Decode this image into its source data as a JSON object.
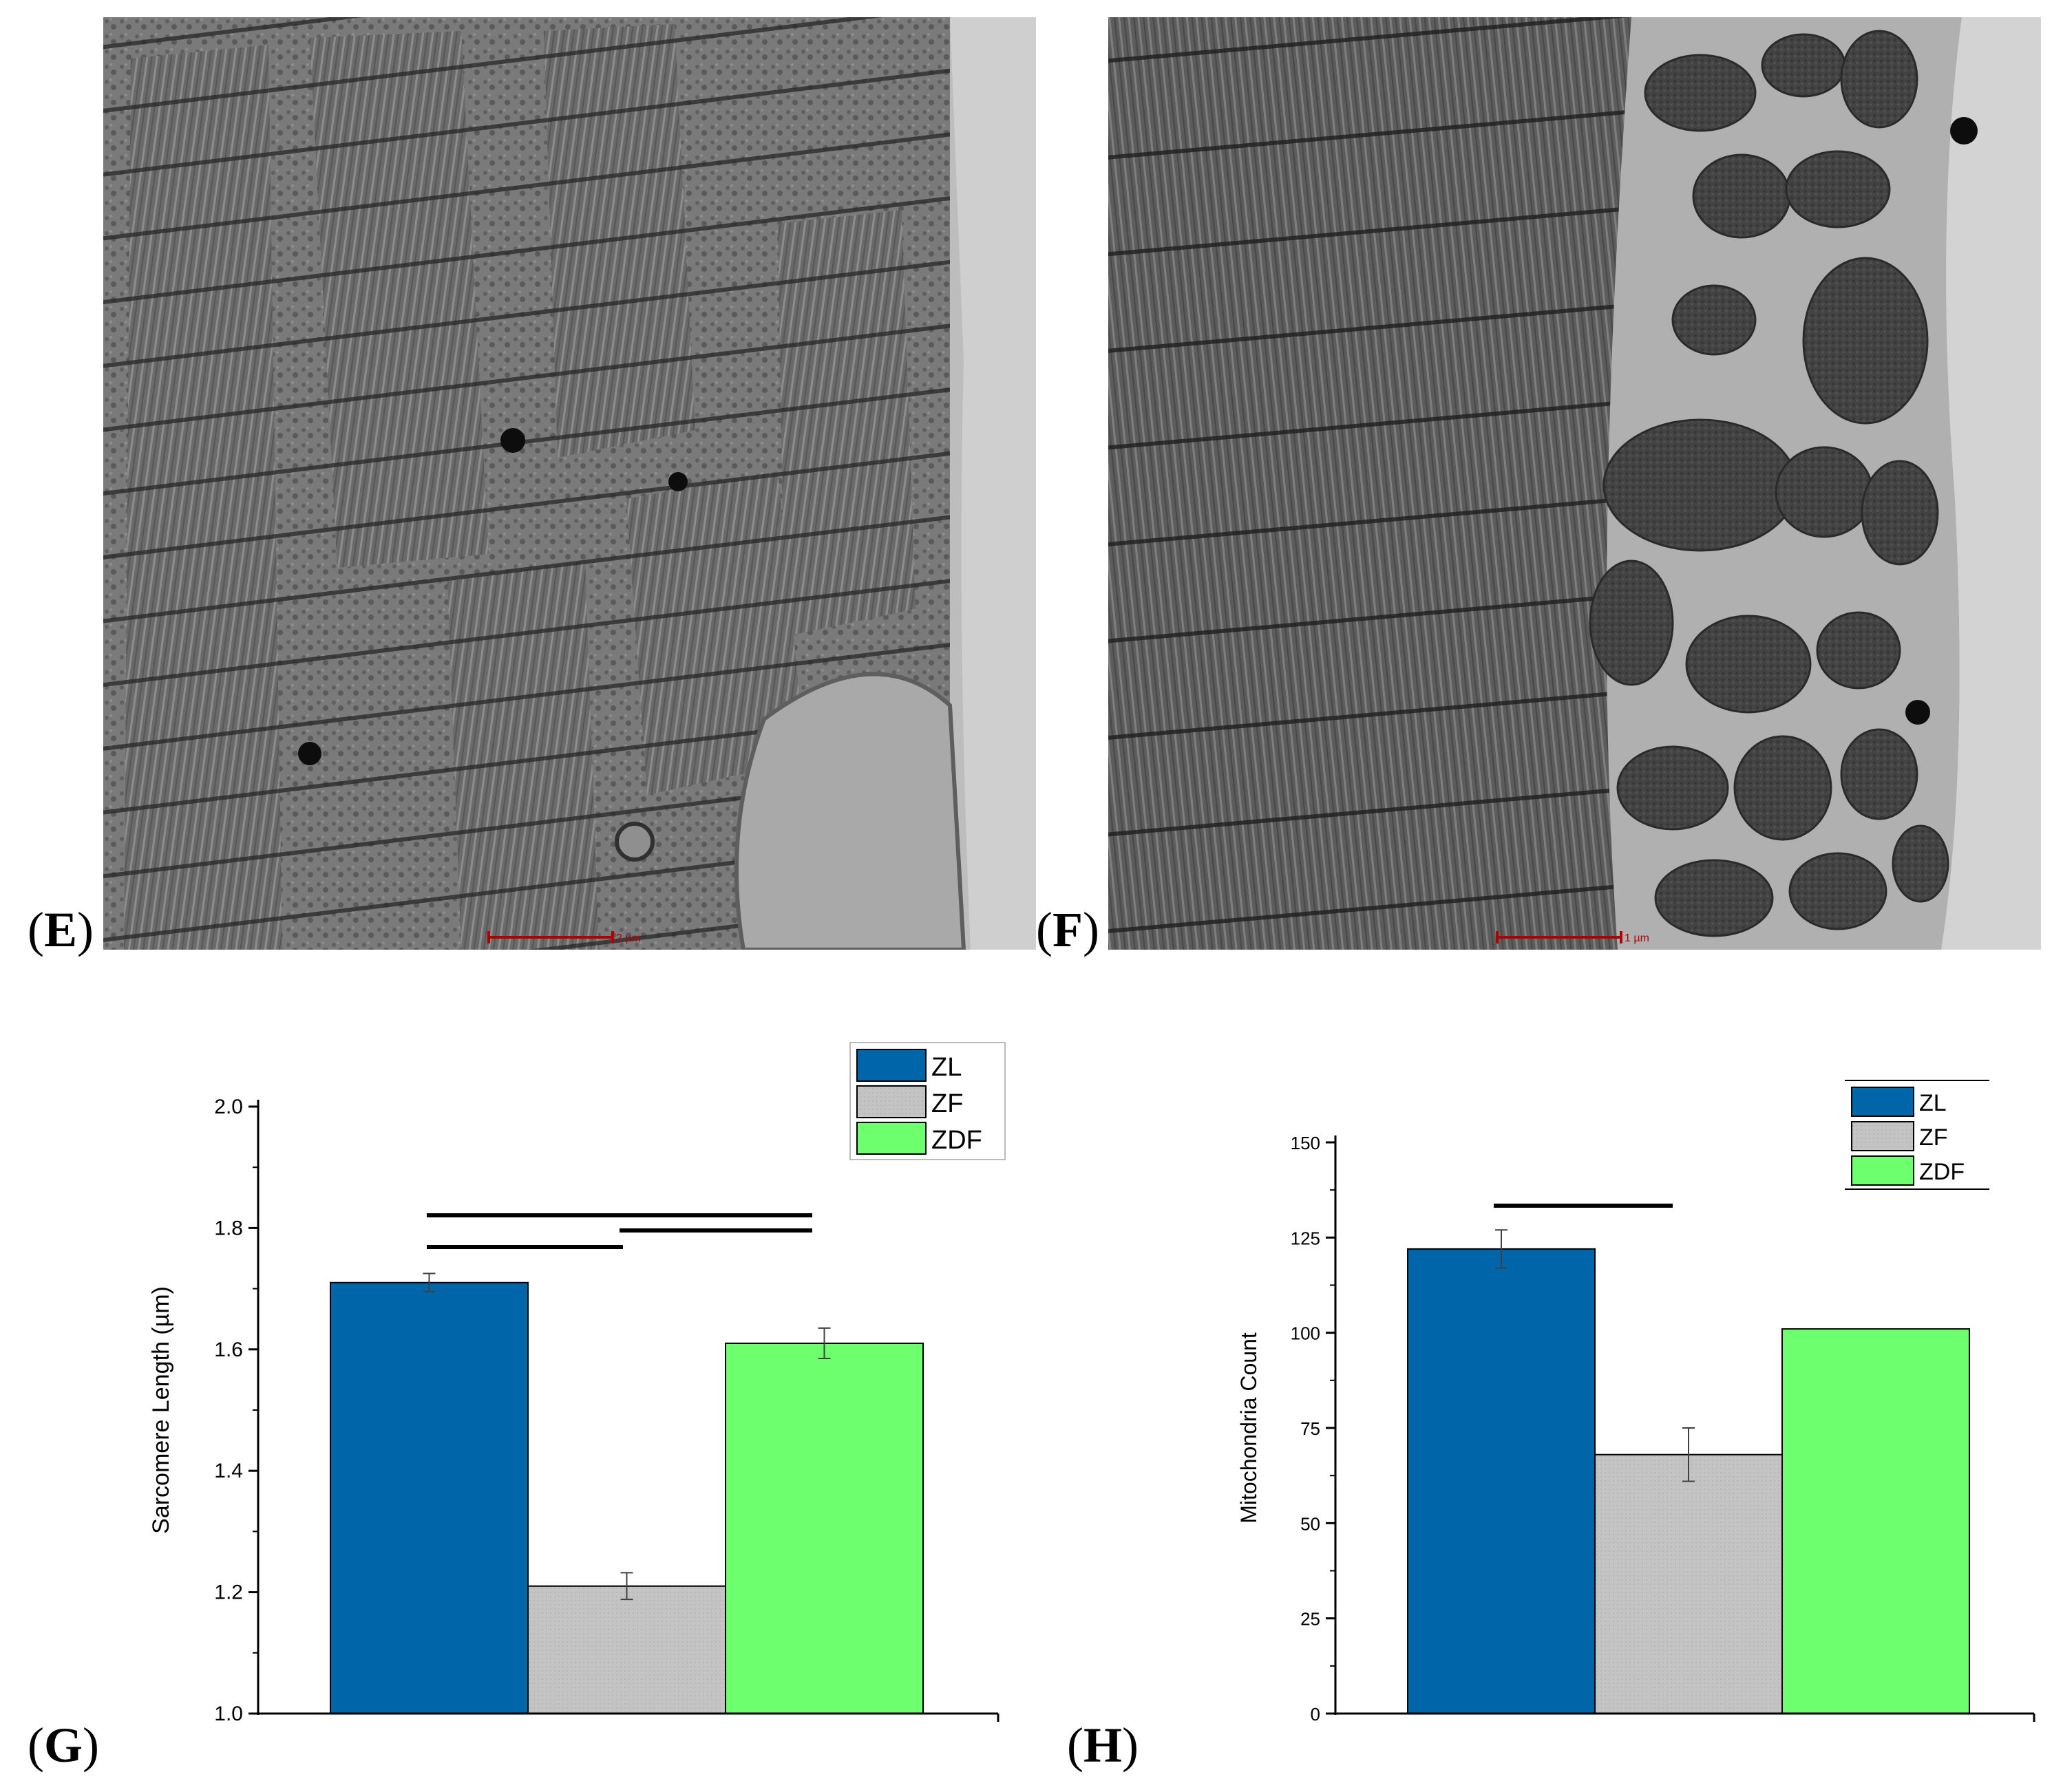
{
  "panels": {
    "E": {
      "letter": "E",
      "open": "(",
      "close": ")"
    },
    "F": {
      "letter": "F",
      "open": "(",
      "close": ")"
    },
    "G": {
      "letter": "G",
      "open": "(",
      "close": ")"
    },
    "H": {
      "letter": "H",
      "open": "(",
      "close": ")"
    }
  },
  "micrographs": {
    "E": {
      "scale_bar_label": "2 µm"
    },
    "F": {
      "scale_bar_label": "1 µm"
    }
  },
  "colors": {
    "ZL": "#0066aa",
    "ZF": "#c4c4c4",
    "ZDF": "#6dff6d",
    "axis": "#000000"
  },
  "chart_data": [
    {
      "type": "bar",
      "panel": "G",
      "categories": [
        "ZL",
        "ZF",
        "ZDF"
      ],
      "values": [
        1.71,
        1.21,
        1.61
      ],
      "errors": [
        0.015,
        0.022,
        0.025
      ],
      "ylabel": "Sarcomere Length (µm)",
      "xlabel": "",
      "ylim": [
        1.0,
        2.0
      ],
      "yticks": [
        "1.0",
        "1.2",
        "1.4",
        "1.6",
        "1.8",
        "2.0"
      ],
      "legend": [
        "ZL",
        "ZF",
        "ZDF"
      ],
      "legend_position": "top-right",
      "significance": [
        [
          0,
          2
        ],
        [
          0,
          1
        ],
        [
          1,
          2
        ]
      ]
    },
    {
      "type": "bar",
      "panel": "H",
      "categories": [
        "ZL",
        "ZF",
        "ZDF"
      ],
      "values": [
        122,
        68,
        101
      ],
      "errors": [
        5,
        7,
        0
      ],
      "ylabel": "Mitochondria Count",
      "xlabel": "",
      "ylim": [
        0,
        150
      ],
      "yticks": [
        "0",
        "25",
        "50",
        "75",
        "100",
        "125",
        "150"
      ],
      "legend": [
        "ZL",
        "ZF",
        "ZDF"
      ],
      "legend_position": "top-right",
      "significance": [
        [
          0,
          1
        ]
      ]
    }
  ]
}
